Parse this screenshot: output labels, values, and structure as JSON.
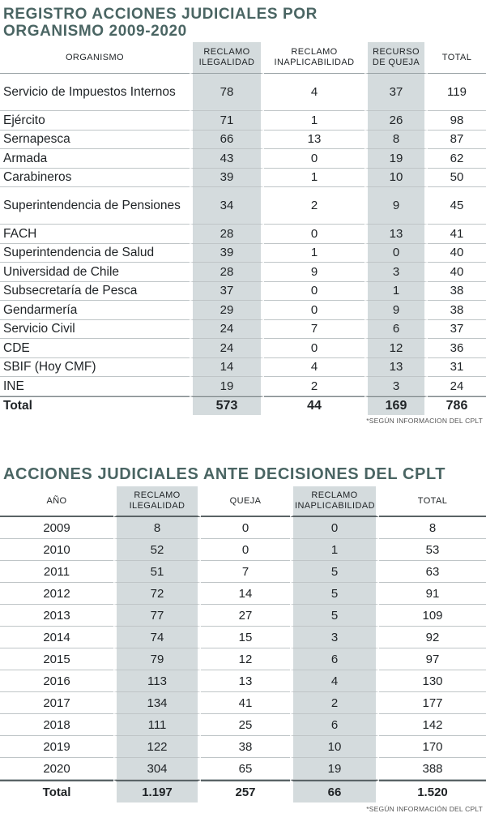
{
  "table1": {
    "title": "REGISTRO ACCIONES JUDICIALES POR ORGANISMO 2009-2020",
    "headers": [
      "ORGANISMO",
      "RECLAMO ILEGALIDAD",
      "RECLAMO INAPLICABILIDAD",
      "RECURSO DE QUEJA",
      "TOTAL"
    ],
    "rows": [
      [
        "Servicio de Impuestos Internos",
        "78",
        "4",
        "37",
        "119"
      ],
      [
        "Ejército",
        "71",
        "1",
        "26",
        "98"
      ],
      [
        "Sernapesca",
        "66",
        "13",
        "8",
        "87"
      ],
      [
        "Armada",
        "43",
        "0",
        "19",
        "62"
      ],
      [
        "Carabineros",
        "39",
        "1",
        "10",
        "50"
      ],
      [
        "Superintendencia de Pensiones",
        "34",
        "2",
        "9",
        "45"
      ],
      [
        "FACH",
        "28",
        "0",
        "13",
        "41"
      ],
      [
        "Superintendencia de Salud",
        "39",
        "1",
        "0",
        "40"
      ],
      [
        "Universidad de Chile",
        "28",
        "9",
        "3",
        "40"
      ],
      [
        "Subsecretaría de Pesca",
        "37",
        "0",
        "1",
        "38"
      ],
      [
        "Gendarmería",
        "29",
        "0",
        "9",
        "38"
      ],
      [
        "Servicio Civil",
        "24",
        "7",
        "6",
        "37"
      ],
      [
        "CDE",
        "24",
        "0",
        "12",
        "36"
      ],
      [
        "SBIF (Hoy CMF)",
        "14",
        "4",
        "13",
        "31"
      ],
      [
        "INE",
        "19",
        "2",
        "3",
        "24"
      ]
    ],
    "total": [
      "Total",
      "573",
      "44",
      "169",
      "786"
    ],
    "note": "*SEGÚN INFORMACION DEL CPLT"
  },
  "table2": {
    "title": "ACCIONES JUDICIALES ANTE DECISIONES DEL CPLT",
    "headers": [
      "AÑO",
      "RECLAMO ILEGALIDAD",
      "QUEJA",
      "RECLAMO INAPLICABILIDAD",
      "TOTAL"
    ],
    "rows": [
      [
        "2009",
        "8",
        "0",
        "0",
        "8"
      ],
      [
        "2010",
        "52",
        "0",
        "1",
        "53"
      ],
      [
        "2011",
        "51",
        "7",
        "5",
        "63"
      ],
      [
        "2012",
        "72",
        "14",
        "5",
        "91"
      ],
      [
        "2013",
        "77",
        "27",
        "5",
        "109"
      ],
      [
        "2014",
        "74",
        "15",
        "3",
        "92"
      ],
      [
        "2015",
        "79",
        "12",
        "6",
        "97"
      ],
      [
        "2016",
        "113",
        "13",
        "4",
        "130"
      ],
      [
        "2017",
        "134",
        "41",
        "2",
        "177"
      ],
      [
        "2018",
        "111",
        "25",
        "6",
        "142"
      ],
      [
        "2019",
        "122",
        "38",
        "10",
        "170"
      ],
      [
        "2020",
        "304",
        "65",
        "19",
        "388"
      ]
    ],
    "total": [
      "Total",
      "1.197",
      "257",
      "66",
      "1.520"
    ],
    "note": "*SEGÚN INFORMACIÓN DEL CPLT"
  },
  "colors": {
    "title": "#4a6563",
    "shade": "#d4dbdd",
    "rule": "#bfc5c7"
  }
}
